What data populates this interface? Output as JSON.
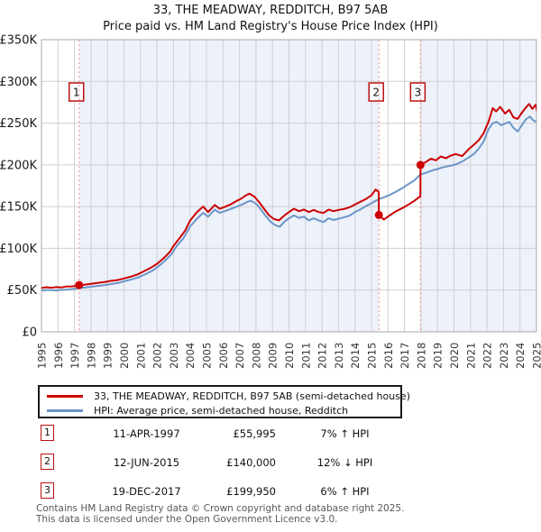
{
  "title": "33, THE MEADWAY, REDDITCH, B97 5AB",
  "subtitle": "Price paid vs. HM Land Registry's House Price Index (HPI)",
  "colors": {
    "property_line": "#cc0000",
    "hpi_line": "#6b96c8",
    "sale_dashed_line": "#ef9090",
    "owned_period_shading": "#edf1fa",
    "gridline": "#cfcfcf",
    "plot_border": "#a9a9a9",
    "marker_box_border": "#bb1111"
  },
  "chart_data": {
    "type": "line",
    "xlim": [
      1995,
      2025
    ],
    "ylim": [
      0,
      350000
    ],
    "grid": true,
    "x_ticks": [
      1995,
      1996,
      1997,
      1998,
      1999,
      2000,
      2001,
      2002,
      2003,
      2004,
      2005,
      2006,
      2007,
      2008,
      2009,
      2010,
      2011,
      2012,
      2013,
      2014,
      2015,
      2016,
      2017,
      2018,
      2019,
      2020,
      2021,
      2022,
      2023,
      2024,
      2025
    ],
    "y_tick_values": [
      0,
      50000,
      100000,
      150000,
      200000,
      250000,
      300000,
      350000
    ],
    "y_tick_labels": [
      "£0",
      "£50K",
      "£100K",
      "£150K",
      "£200K",
      "£250K",
      "£300K",
      "£350K"
    ],
    "shaded_periods": [
      [
        1997.28,
        2015.45
      ],
      [
        2017.97,
        2025
      ]
    ],
    "sales": [
      {
        "n": "1",
        "x": 1997.28,
        "price": 55995
      },
      {
        "n": "2",
        "x": 2015.45,
        "price": 140000
      },
      {
        "n": "3",
        "x": 2017.97,
        "price": 199950
      }
    ],
    "series": [
      {
        "name": "33, THE MEADWAY, REDDITCH, B97 5AB (semi-detached house)",
        "color": "#cc0000",
        "points": [
          [
            1995.0,
            52500
          ],
          [
            1995.3,
            53500
          ],
          [
            1995.6,
            52800
          ],
          [
            1995.9,
            53600
          ],
          [
            1996.2,
            53200
          ],
          [
            1996.5,
            54200
          ],
          [
            1996.8,
            54400
          ],
          [
            1997.1,
            55000
          ],
          [
            1997.28,
            55995
          ],
          [
            1997.6,
            56500
          ],
          [
            1998.0,
            57500
          ],
          [
            1998.4,
            58500
          ],
          [
            1998.8,
            59500
          ],
          [
            1999.2,
            61000
          ],
          [
            1999.6,
            62000
          ],
          [
            2000.0,
            64000
          ],
          [
            2000.4,
            66000
          ],
          [
            2000.8,
            68500
          ],
          [
            2001.2,
            72500
          ],
          [
            2001.6,
            76500
          ],
          [
            2002.0,
            81500
          ],
          [
            2002.4,
            88000
          ],
          [
            2002.8,
            96000
          ],
          [
            2003.0,
            103000
          ],
          [
            2003.4,
            113000
          ],
          [
            2003.7,
            121000
          ],
          [
            2004.0,
            133000
          ],
          [
            2004.4,
            143000
          ],
          [
            2004.8,
            150000
          ],
          [
            2005.1,
            143500
          ],
          [
            2005.5,
            152000
          ],
          [
            2005.8,
            147500
          ],
          [
            2006.1,
            149500
          ],
          [
            2006.5,
            153000
          ],
          [
            2006.8,
            156500
          ],
          [
            2007.1,
            159500
          ],
          [
            2007.4,
            163500
          ],
          [
            2007.6,
            165500
          ],
          [
            2007.9,
            162000
          ],
          [
            2008.2,
            155000
          ],
          [
            2008.5,
            147000
          ],
          [
            2008.8,
            139500
          ],
          [
            2009.1,
            135000
          ],
          [
            2009.4,
            133500
          ],
          [
            2009.7,
            139000
          ],
          [
            2010.0,
            143500
          ],
          [
            2010.3,
            147500
          ],
          [
            2010.6,
            144500
          ],
          [
            2010.9,
            146500
          ],
          [
            2011.2,
            143500
          ],
          [
            2011.5,
            146000
          ],
          [
            2011.8,
            143500
          ],
          [
            2012.1,
            142500
          ],
          [
            2012.4,
            146500
          ],
          [
            2012.7,
            144500
          ],
          [
            2013.0,
            146000
          ],
          [
            2013.4,
            147500
          ],
          [
            2013.7,
            149500
          ],
          [
            2014.0,
            152500
          ],
          [
            2014.4,
            156500
          ],
          [
            2014.7,
            159500
          ],
          [
            2015.0,
            163500
          ],
          [
            2015.25,
            170500
          ],
          [
            2015.44,
            167500
          ],
          [
            2015.45,
            140000
          ],
          [
            2015.75,
            134500
          ],
          [
            2016.1,
            139500
          ],
          [
            2016.5,
            144500
          ],
          [
            2016.9,
            148500
          ],
          [
            2017.2,
            152000
          ],
          [
            2017.6,
            157000
          ],
          [
            2017.96,
            162500
          ],
          [
            2017.97,
            199950
          ],
          [
            2018.3,
            203500
          ],
          [
            2018.6,
            207500
          ],
          [
            2018.9,
            205500
          ],
          [
            2019.2,
            210000
          ],
          [
            2019.5,
            208000
          ],
          [
            2019.8,
            211000
          ],
          [
            2020.1,
            213000
          ],
          [
            2020.5,
            210500
          ],
          [
            2020.9,
            219000
          ],
          [
            2021.2,
            224000
          ],
          [
            2021.5,
            229500
          ],
          [
            2021.8,
            238000
          ],
          [
            2022.1,
            252000
          ],
          [
            2022.35,
            268000
          ],
          [
            2022.55,
            264000
          ],
          [
            2022.8,
            269500
          ],
          [
            2023.1,
            261500
          ],
          [
            2023.35,
            266000
          ],
          [
            2023.6,
            257000
          ],
          [
            2023.85,
            255000
          ],
          [
            2024.1,
            262000
          ],
          [
            2024.35,
            268500
          ],
          [
            2024.55,
            273000
          ],
          [
            2024.75,
            267000
          ],
          [
            2024.95,
            272000
          ],
          [
            2025.05,
            263000
          ]
        ]
      },
      {
        "name": "HPI: Average price, semi-detached house, Redditch",
        "color": "#6b96c8",
        "points": [
          [
            1995.0,
            49500
          ],
          [
            1995.4,
            50200
          ],
          [
            1995.8,
            49600
          ],
          [
            1996.2,
            50200
          ],
          [
            1996.6,
            50800
          ],
          [
            1997.0,
            51600
          ],
          [
            1997.28,
            52300
          ],
          [
            1997.7,
            53200
          ],
          [
            1998.1,
            54200
          ],
          [
            1998.5,
            55200
          ],
          [
            1998.9,
            56200
          ],
          [
            1999.3,
            57600
          ],
          [
            1999.7,
            58800
          ],
          [
            2000.1,
            61000
          ],
          [
            2000.5,
            63000
          ],
          [
            2000.9,
            65500
          ],
          [
            2001.3,
            69000
          ],
          [
            2001.7,
            73000
          ],
          [
            2002.1,
            78500
          ],
          [
            2002.5,
            85500
          ],
          [
            2002.9,
            93500
          ],
          [
            2003.2,
            103000
          ],
          [
            2003.6,
            112000
          ],
          [
            2004.0,
            126000
          ],
          [
            2004.4,
            135000
          ],
          [
            2004.8,
            142500
          ],
          [
            2005.1,
            138000
          ],
          [
            2005.5,
            146500
          ],
          [
            2005.8,
            142500
          ],
          [
            2006.1,
            144500
          ],
          [
            2006.5,
            147500
          ],
          [
            2006.9,
            150500
          ],
          [
            2007.2,
            153000
          ],
          [
            2007.5,
            156000
          ],
          [
            2007.7,
            157000
          ],
          [
            2008.0,
            153500
          ],
          [
            2008.3,
            146500
          ],
          [
            2008.6,
            138500
          ],
          [
            2008.9,
            131500
          ],
          [
            2009.2,
            127500
          ],
          [
            2009.45,
            126000
          ],
          [
            2009.7,
            131500
          ],
          [
            2010.0,
            136000
          ],
          [
            2010.3,
            139500
          ],
          [
            2010.6,
            136500
          ],
          [
            2010.9,
            138000
          ],
          [
            2011.2,
            133500
          ],
          [
            2011.5,
            136000
          ],
          [
            2011.8,
            133500
          ],
          [
            2012.1,
            131500
          ],
          [
            2012.4,
            136000
          ],
          [
            2012.7,
            134000
          ],
          [
            2013.0,
            135500
          ],
          [
            2013.4,
            137500
          ],
          [
            2013.7,
            139500
          ],
          [
            2014.0,
            143500
          ],
          [
            2014.4,
            147500
          ],
          [
            2014.7,
            151000
          ],
          [
            2015.0,
            154000
          ],
          [
            2015.45,
            159000
          ],
          [
            2015.8,
            161500
          ],
          [
            2016.1,
            164000
          ],
          [
            2016.5,
            168000
          ],
          [
            2016.9,
            172500
          ],
          [
            2017.2,
            176500
          ],
          [
            2017.6,
            181500
          ],
          [
            2017.97,
            188600
          ],
          [
            2018.3,
            190500
          ],
          [
            2018.7,
            193500
          ],
          [
            2019.0,
            195000
          ],
          [
            2019.4,
            197500
          ],
          [
            2019.8,
            199000
          ],
          [
            2020.1,
            200500
          ],
          [
            2020.5,
            204000
          ],
          [
            2020.9,
            209000
          ],
          [
            2021.2,
            213000
          ],
          [
            2021.5,
            219500
          ],
          [
            2021.8,
            228000
          ],
          [
            2022.1,
            243000
          ],
          [
            2022.35,
            250000
          ],
          [
            2022.6,
            251500
          ],
          [
            2022.85,
            247500
          ],
          [
            2023.1,
            249500
          ],
          [
            2023.35,
            251500
          ],
          [
            2023.6,
            244500
          ],
          [
            2023.85,
            240000
          ],
          [
            2024.1,
            247000
          ],
          [
            2024.35,
            254500
          ],
          [
            2024.6,
            258000
          ],
          [
            2024.8,
            253500
          ],
          [
            2025.05,
            250500
          ]
        ]
      }
    ]
  },
  "legend": [
    {
      "label": "33, THE MEADWAY, REDDITCH, B97 5AB (semi-detached house)",
      "color": "#cc0000"
    },
    {
      "label": "HPI: Average price, semi-detached house, Redditch",
      "color": "#6b96c8"
    }
  ],
  "transactions": [
    {
      "num": "1",
      "date": "11-APR-1997",
      "price": "£55,995",
      "hpi": "7% ↑ HPI"
    },
    {
      "num": "2",
      "date": "12-JUN-2015",
      "price": "£140,000",
      "hpi": "12% ↓ HPI"
    },
    {
      "num": "3",
      "date": "19-DEC-2017",
      "price": "£199,950",
      "hpi": "6% ↑ HPI"
    }
  ],
  "footer": {
    "line1": "Contains HM Land Registry data © Crown copyright and database right 2025.",
    "line2": "This data is licensed under the Open Government Licence v3.0."
  }
}
